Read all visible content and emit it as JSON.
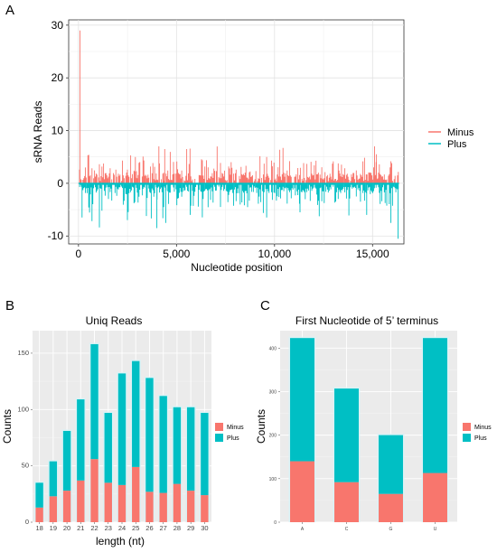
{
  "colors": {
    "minus": "#f8766d",
    "plus": "#00bfc4",
    "panel_bg": "#ebebeb",
    "grid": "#ffffff"
  },
  "chart_data": [
    {
      "panel": "A",
      "type": "bar",
      "title": "",
      "xlabel": "Nucleotide position",
      "ylabel": "sRNA Reads",
      "xlim": [
        -500,
        16600
      ],
      "ylim": [
        -11.5,
        31
      ],
      "x_ticks": [
        "0",
        "5,000",
        "10,000",
        "15,000"
      ],
      "y_ticks": [
        "30",
        "20",
        "10",
        "0",
        "-10"
      ],
      "legend": {
        "position": "right",
        "entries": [
          "Minus",
          "Plus"
        ]
      },
      "series": [
        {
          "name": "Minus",
          "values": []
        },
        {
          "name": "Plus",
          "values": []
        }
      ],
      "notes": "dense per-position stacked read counts; Minus max ~29 near position 0, Plus min ~-10.5 near 16,300"
    },
    {
      "panel": "B",
      "type": "bar",
      "title": "Uniq Reads",
      "xlabel": "length (nt)",
      "ylabel": "Counts",
      "ylim": [
        0,
        170
      ],
      "y_ticks": [
        "0",
        "50",
        "100",
        "150"
      ],
      "categories": [
        "18",
        "19",
        "20",
        "21",
        "22",
        "23",
        "24",
        "25",
        "26",
        "27",
        "28",
        "29",
        "30"
      ],
      "legend": {
        "position": "right",
        "entries": [
          "Minus",
          "Plus"
        ]
      },
      "series": [
        {
          "name": "Minus",
          "values": [
            13,
            23,
            28,
            37,
            56,
            35,
            33,
            49,
            27,
            26,
            34,
            28,
            24
          ]
        },
        {
          "name": "Plus",
          "values": [
            22,
            31,
            53,
            72,
            102,
            62,
            99,
            94,
            101,
            86,
            68,
            74,
            73
          ]
        }
      ]
    },
    {
      "panel": "C",
      "type": "bar",
      "title": "First Nucleotide of 5’ terminus",
      "xlabel": "",
      "ylabel": "Counts",
      "ylim": [
        0,
        440
      ],
      "y_ticks": [
        "0",
        "100",
        "200",
        "300",
        "400"
      ],
      "categories": [
        "A",
        "C",
        "G",
        "U"
      ],
      "legend": {
        "position": "right",
        "entries": [
          "Minus",
          "Plus"
        ]
      },
      "series": [
        {
          "name": "Minus",
          "values": [
            140,
            92,
            65,
            113
          ]
        },
        {
          "name": "Plus",
          "values": [
            283,
            215,
            135,
            310
          ]
        }
      ]
    }
  ],
  "labels": {
    "a": "A",
    "b": "B",
    "c": "C"
  }
}
